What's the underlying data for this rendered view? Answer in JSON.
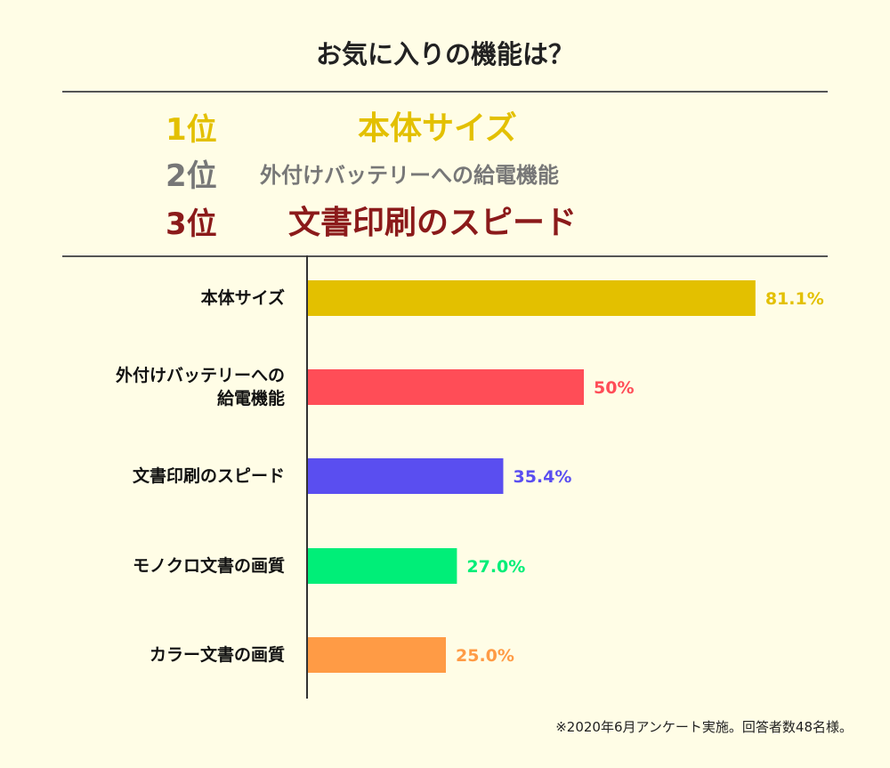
{
  "title": "お気に入りの機能は？",
  "ranking": [
    {
      "rank": "1位",
      "name": "本体サイズ",
      "color": "#e3c000"
    },
    {
      "rank": "2位",
      "name": "外付けバッテリーへの給電機能",
      "color": "#777777"
    },
    {
      "rank": "3位",
      "name": "文書印刷のスピード",
      "color": "#8b1a1a"
    }
  ],
  "chart_data": {
    "type": "bar",
    "orientation": "horizontal",
    "title": "",
    "xlabel": "",
    "ylabel": "",
    "xlim": [
      0,
      100
    ],
    "grid": false,
    "categories": [
      "本体サイズ",
      "外付けバッテリーへの給電機能",
      "文書印刷のスピード",
      "モノクロ文書の画質",
      "カラー文書の画質"
    ],
    "category_lines": [
      [
        "本体サイズ"
      ],
      [
        "外付けバッテリーへの",
        "給電機能"
      ],
      [
        "文書印刷のスピード"
      ],
      [
        "モノクロ文書の画質"
      ],
      [
        "カラー文書の画質"
      ]
    ],
    "values": [
      81.1,
      50,
      35.4,
      27.0,
      25.0
    ],
    "value_labels": [
      "81.1%",
      "50%",
      "35.4%",
      "27.0%",
      "25.0%"
    ],
    "colors": [
      "#e3c000",
      "#ff4d57",
      "#5a4ef0",
      "#00ee78",
      "#ff9b45"
    ]
  },
  "footnote": "※2020年6月アンケート実施。回答者数48名様。"
}
